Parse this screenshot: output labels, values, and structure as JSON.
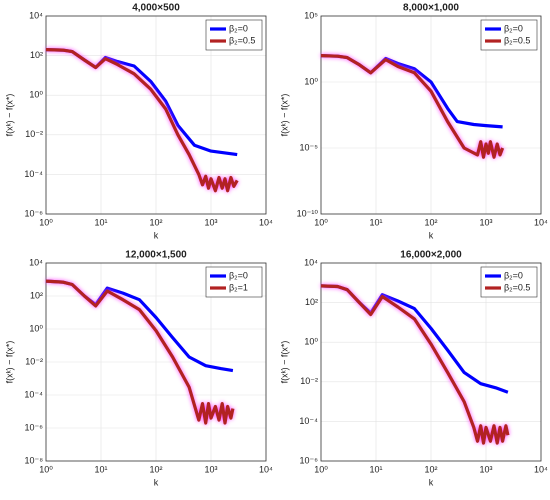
{
  "chart_data": [
    {
      "type": "line",
      "title": "4,000×500",
      "xlabel": "k",
      "ylabel": "f(xᵏ) − f(x*)",
      "xscale": "log",
      "yscale": "log",
      "grid": true,
      "legend": "upper right",
      "xlim": [
        1,
        10000
      ],
      "ylim": [
        1e-06,
        10000
      ],
      "xticks": [
        {
          "value": 1,
          "label": "10⁰"
        },
        {
          "value": 10,
          "label": "10¹"
        },
        {
          "value": 100,
          "label": "10²"
        },
        {
          "value": 1000,
          "label": "10³"
        },
        {
          "value": 10000,
          "label": "10⁴"
        }
      ],
      "yticks": [
        {
          "value": 1e-06,
          "label": "10⁻⁶"
        },
        {
          "value": 0.0001,
          "label": "10⁻⁴"
        },
        {
          "value": 0.01,
          "label": "10⁻²"
        },
        {
          "value": 1,
          "label": "10⁰"
        },
        {
          "value": 100,
          "label": "10²"
        },
        {
          "value": 10000,
          "label": "10⁴"
        }
      ],
      "series": [
        {
          "name": "β₂=0",
          "color": "#0000ff",
          "x": [
            1,
            2,
            3,
            5,
            8,
            12,
            20,
            40,
            80,
            150,
            250,
            500,
            1000,
            3000
          ],
          "values": [
            200,
            190,
            160,
            60,
            25,
            80,
            50,
            30,
            5,
            0.5,
            0.03,
            0.003,
            0.0015,
            0.001
          ]
        },
        {
          "name": "β₂=0.5",
          "color": "#b22222",
          "x": [
            1,
            2,
            3,
            5,
            8,
            12,
            20,
            40,
            80,
            150,
            250,
            400,
            600,
            700,
            800,
            900,
            1000,
            1200,
            1400,
            1600,
            1800,
            2000,
            2300,
            2600,
            3000
          ],
          "values": [
            200,
            190,
            160,
            60,
            25,
            70,
            35,
            12,
            2,
            0.2,
            0.01,
            0.001,
            0.0001,
            3e-05,
            8e-05,
            2e-05,
            6e-05,
            1.5e-05,
            7e-05,
            2e-05,
            6e-05,
            1.5e-05,
            7e-05,
            2.5e-05,
            5e-05
          ]
        }
      ]
    },
    {
      "type": "line",
      "title": "8,000×1,000",
      "xlabel": "k",
      "ylabel": "f(xᵏ) − f(x*)",
      "xscale": "log",
      "yscale": "log",
      "grid": true,
      "legend": "upper right",
      "xlim": [
        1,
        10000
      ],
      "ylim": [
        1e-10,
        100000
      ],
      "xticks": [
        {
          "value": 1,
          "label": "10⁰"
        },
        {
          "value": 10,
          "label": "10¹"
        },
        {
          "value": 100,
          "label": "10²"
        },
        {
          "value": 1000,
          "label": "10³"
        },
        {
          "value": 10000,
          "label": "10⁴"
        }
      ],
      "yticks": [
        {
          "value": 1e-10,
          "label": "10⁻¹⁰"
        },
        {
          "value": 1e-05,
          "label": "10⁻⁵"
        },
        {
          "value": 1,
          "label": "10⁰"
        },
        {
          "value": 100000,
          "label": "10⁵"
        }
      ],
      "series": [
        {
          "name": "β₂=0",
          "color": "#0000ff",
          "x": [
            1,
            2,
            3,
            5,
            8,
            15,
            25,
            50,
            100,
            200,
            300,
            600,
            1000,
            2000
          ],
          "values": [
            100,
            90,
            70,
            20,
            5,
            60,
            25,
            10,
            1,
            0.01,
            0.001,
            0.0006,
            0.0005,
            0.0004
          ]
        },
        {
          "name": "β₂=0.5",
          "color": "#b22222",
          "x": [
            1,
            2,
            3,
            5,
            8,
            15,
            25,
            50,
            100,
            200,
            400,
            700,
            800,
            900,
            1000,
            1100,
            1200,
            1400,
            1600,
            1800,
            2000
          ],
          "values": [
            100,
            90,
            70,
            20,
            5,
            50,
            15,
            5,
            0.2,
            0.001,
            1e-05,
            3e-06,
            3e-05,
            2e-06,
            2e-05,
            4e-06,
            3e-05,
            2e-06,
            2e-05,
            3e-06,
            1e-05
          ]
        }
      ]
    },
    {
      "type": "line",
      "title": "12,000×1,500",
      "xlabel": "k",
      "ylabel": "f(xᵏ) − f(x*)",
      "xscale": "log",
      "yscale": "log",
      "grid": true,
      "legend": "upper right",
      "xlim": [
        1,
        10000
      ],
      "ylim": [
        1e-08,
        10000
      ],
      "xticks": [
        {
          "value": 1,
          "label": "10⁰"
        },
        {
          "value": 10,
          "label": "10¹"
        },
        {
          "value": 100,
          "label": "10²"
        },
        {
          "value": 1000,
          "label": "10³"
        },
        {
          "value": 10000,
          "label": "10⁴"
        }
      ],
      "yticks": [
        {
          "value": 1e-08,
          "label": "10⁻⁸"
        },
        {
          "value": 1e-06,
          "label": "10⁻⁶"
        },
        {
          "value": 0.0001,
          "label": "10⁻⁴"
        },
        {
          "value": 0.01,
          "label": "10⁻²"
        },
        {
          "value": 1,
          "label": "10⁰"
        },
        {
          "value": 100,
          "label": "10²"
        },
        {
          "value": 10000,
          "label": "10⁴"
        }
      ],
      "series": [
        {
          "name": "β₂=0",
          "color": "#0000ff",
          "x": [
            1,
            2,
            3,
            5,
            8,
            13,
            25,
            50,
            100,
            200,
            400,
            800,
            1500,
            2500
          ],
          "values": [
            800,
            700,
            500,
            100,
            30,
            300,
            150,
            60,
            5,
            0.3,
            0.02,
            0.006,
            0.004,
            0.003
          ]
        },
        {
          "name": "β₂=1",
          "color": "#b22222",
          "x": [
            1,
            2,
            3,
            5,
            8,
            13,
            25,
            50,
            100,
            200,
            400,
            600,
            700,
            800,
            900,
            1000,
            1200,
            1400,
            1600,
            1800,
            2000,
            2300,
            2500
          ],
          "values": [
            800,
            700,
            500,
            100,
            25,
            200,
            60,
            15,
            0.8,
            0.02,
            0.0003,
            3e-06,
            3e-05,
            2e-06,
            3e-05,
            4e-06,
            2e-05,
            3e-06,
            3e-05,
            2e-06,
            2e-05,
            4e-06,
            1.5e-05
          ]
        }
      ]
    },
    {
      "type": "line",
      "title": "16,000×2,000",
      "xlabel": "k",
      "ylabel": "f(xᵏ) − f(x*)",
      "xscale": "log",
      "yscale": "log",
      "grid": true,
      "legend": "upper right",
      "xlim": [
        1,
        10000
      ],
      "ylim": [
        1e-06,
        10000
      ],
      "xticks": [
        {
          "value": 1,
          "label": "10⁰"
        },
        {
          "value": 10,
          "label": "10¹"
        },
        {
          "value": 100,
          "label": "10²"
        },
        {
          "value": 1000,
          "label": "10³"
        },
        {
          "value": 10000,
          "label": "10⁴"
        }
      ],
      "yticks": [
        {
          "value": 1e-06,
          "label": "10⁻⁶"
        },
        {
          "value": 0.0001,
          "label": "10⁻⁴"
        },
        {
          "value": 0.01,
          "label": "10⁻²"
        },
        {
          "value": 1,
          "label": "10⁰"
        },
        {
          "value": 100,
          "label": "10²"
        },
        {
          "value": 10000,
          "label": "10⁴"
        }
      ],
      "series": [
        {
          "name": "β₂=0",
          "color": "#0000ff",
          "x": [
            1,
            2,
            3,
            5,
            8,
            13,
            25,
            50,
            100,
            200,
            400,
            800,
            1500,
            2500
          ],
          "values": [
            700,
            650,
            450,
            100,
            30,
            250,
            120,
            50,
            5,
            0.4,
            0.03,
            0.008,
            0.005,
            0.003
          ]
        },
        {
          "name": "β₂=0.5",
          "color": "#b22222",
          "x": [
            1,
            2,
            3,
            5,
            8,
            13,
            25,
            50,
            100,
            200,
            400,
            600,
            700,
            800,
            900,
            1000,
            1200,
            1400,
            1600,
            1800,
            2000,
            2300,
            2500
          ],
          "values": [
            700,
            650,
            450,
            100,
            25,
            200,
            60,
            15,
            0.8,
            0.03,
            0.001,
            5e-05,
            1e-05,
            6e-05,
            8e-06,
            5e-05,
            1e-05,
            6e-05,
            8e-06,
            5e-05,
            1e-05,
            6e-05,
            2e-05
          ]
        }
      ]
    }
  ]
}
